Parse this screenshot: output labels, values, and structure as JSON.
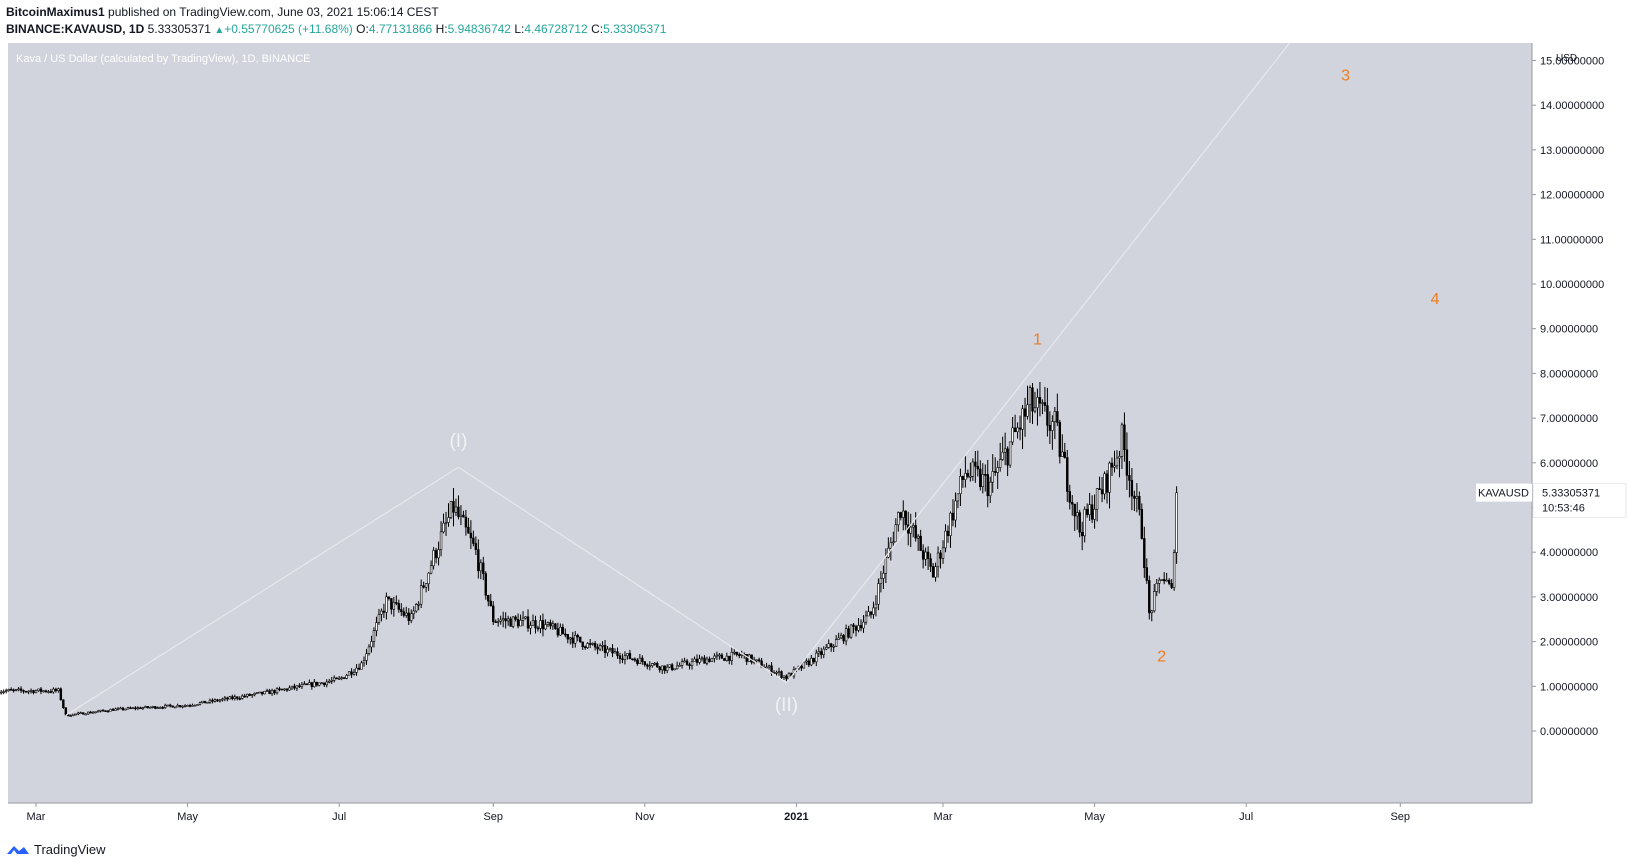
{
  "header": {
    "author": "BitcoinMaximus1",
    "published": "published on TradingView.com, June 03, 2021 15:06:14 CEST",
    "symbol": "BINANCE:KAVAUSD, 1D",
    "price": "5.33305371",
    "change": "+0.55770625 (+11.68%)",
    "o_label": "O:",
    "o_value": "4.77131866",
    "h_label": "H:",
    "h_value": "5.94836742",
    "l_label": "L:",
    "l_value": "4.46728712",
    "c_label": "C:",
    "c_value": "5.33305371"
  },
  "pane_title": "Kava / US Dollar (calculated by TradingView), 1D, BINANCE",
  "footer": {
    "brand": "TradingView",
    "logo_icon": "tradingview-logo-icon"
  },
  "colors": {
    "pane_bg": "#d1d4dc",
    "candle": "#000000",
    "wave_line": "#e8e8ee",
    "wave_label_white": "#f2f2f6",
    "wave_label_orange": "#ef7c1c",
    "up_text": "#26a69a"
  },
  "chart_data": {
    "type": "candlestick",
    "ylabel": "USD",
    "x_ticks": [
      "Mar",
      "May",
      "Jul",
      "Sep",
      "Nov",
      "2021",
      "Mar",
      "May",
      "Jul",
      "Sep"
    ],
    "y_ticks": [
      "15.00000000",
      "14.00000000",
      "13.00000000",
      "12.00000000",
      "11.00000000",
      "10.00000000",
      "9.00000000",
      "8.00000000",
      "7.00000000",
      "6.00000000",
      "5.00000000",
      "4.00000000",
      "3.00000000",
      "2.00000000",
      "1.00000000",
      "0.00000000"
    ],
    "ylim": [
      -0.9,
      15.3
    ],
    "price_label": {
      "symbol": "KAVAUSD",
      "price": "5.33305371",
      "countdown": "10:53:46"
    },
    "close_path": [
      [
        "2020-02-15",
        0.9
      ],
      [
        "2020-03-10",
        0.9
      ],
      [
        "2020-03-13",
        0.35
      ],
      [
        "2020-04-01",
        0.48
      ],
      [
        "2020-05-01",
        0.58
      ],
      [
        "2020-06-01",
        0.85
      ],
      [
        "2020-07-01",
        1.15
      ],
      [
        "2020-07-10",
        1.5
      ],
      [
        "2020-07-20",
        2.9
      ],
      [
        "2020-07-30",
        2.5
      ],
      [
        "2020-08-10",
        4.2
      ],
      [
        "2020-08-16",
        5.0
      ],
      [
        "2020-08-25",
        4.0
      ],
      [
        "2020-09-01",
        2.5
      ],
      [
        "2020-09-20",
        2.4
      ],
      [
        "2020-10-10",
        1.9
      ],
      [
        "2020-11-10",
        1.4
      ],
      [
        "2020-11-25",
        1.6
      ],
      [
        "2020-12-10",
        1.7
      ],
      [
        "2020-12-28",
        1.2
      ],
      [
        "2021-01-10",
        1.7
      ],
      [
        "2021-01-31",
        2.6
      ],
      [
        "2021-02-12",
        5.0
      ],
      [
        "2021-02-25",
        3.5
      ],
      [
        "2021-03-10",
        5.8
      ],
      [
        "2021-03-20",
        5.5
      ],
      [
        "2021-04-05",
        7.3
      ],
      [
        "2021-04-15",
        6.8
      ],
      [
        "2021-04-25",
        4.5
      ],
      [
        "2021-05-05",
        5.5
      ],
      [
        "2021-05-12",
        6.5
      ],
      [
        "2021-05-20",
        4.5
      ],
      [
        "2021-05-23",
        2.6
      ],
      [
        "2021-05-28",
        3.5
      ],
      [
        "2021-06-01",
        3.1
      ],
      [
        "2021-06-03",
        5.33
      ]
    ],
    "wave_lines": [
      {
        "from": [
          "2020-03-13",
          0.35
        ],
        "to": [
          "2020-08-18",
          5.9
        ]
      },
      {
        "from": [
          "2020-08-18",
          5.9
        ],
        "to": [
          "2020-12-28",
          1.08
        ]
      },
      {
        "from": [
          "2020-12-28",
          1.08
        ],
        "to": [
          "2021-07-20",
          15.5
        ]
      }
    ],
    "annotations": [
      {
        "text": "(I)",
        "x": "2020-08-18",
        "y": 6.35,
        "color": "white"
      },
      {
        "text": "(II)",
        "x": "2020-12-28",
        "y": 0.45,
        "color": "white"
      },
      {
        "text": "1",
        "x": "2021-04-08",
        "y": 8.65,
        "color": "orange"
      },
      {
        "text": "2",
        "x": "2021-05-28",
        "y": 1.55,
        "color": "orange"
      },
      {
        "text": "3",
        "x": "2021-08-10",
        "y": 14.55,
        "color": "orange"
      },
      {
        "text": "4",
        "x": "2021-09-15",
        "y": 9.55,
        "color": "orange"
      }
    ]
  }
}
